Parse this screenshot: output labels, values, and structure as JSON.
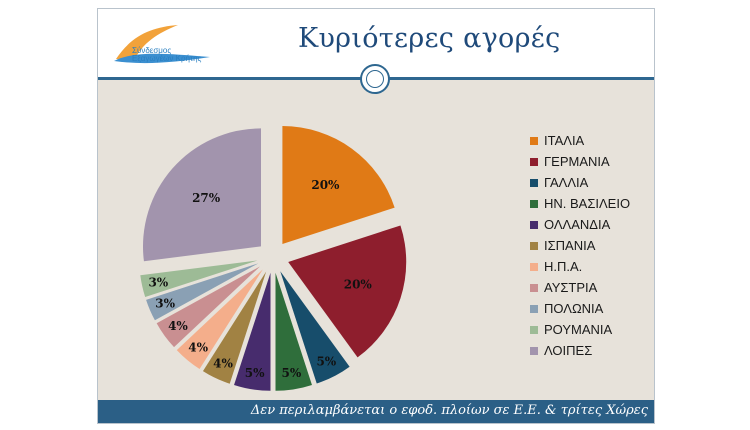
{
  "slide": {
    "title": "Κυριότερες αγορές",
    "logo_text": "Σύνδεσμος Εξαγωγέων Κρήτης",
    "footer": "Δεν περιλαμβάνεται ο εφοδ. πλοίων σε Ε.Ε. & τρίτες Χώρες"
  },
  "chart_data": {
    "type": "pie",
    "title": "",
    "slices": [
      {
        "name": "ΙΤΑΛΙΑ",
        "value": 20,
        "label": "20%",
        "color": "#e07a16"
      },
      {
        "name": "ΓΕΡΜΑΝΙΑ",
        "value": 20,
        "label": "20%",
        "color": "#8e1e2d"
      },
      {
        "name": "ΓΑΛΛΙΑ",
        "value": 5,
        "label": "5%",
        "color": "#174d6b"
      },
      {
        "name": "ΗΝ. ΒΑΣΙΛΕΙΟ",
        "value": 5,
        "label": "5%",
        "color": "#2f6e3b"
      },
      {
        "name": "ΟΛΛΑΝΔΙΑ",
        "value": 5,
        "label": "5%",
        "color": "#472c6d"
      },
      {
        "name": "ΙΣΠΑΝΙΑ",
        "value": 4,
        "label": "4%",
        "color": "#a18243"
      },
      {
        "name": "Η.Π.Α.",
        "value": 4,
        "label": "4%",
        "color": "#f4ae8b"
      },
      {
        "name": "ΑΥΣΤΡΙΑ",
        "value": 4,
        "label": "4%",
        "color": "#c98f91"
      },
      {
        "name": "ΠΟΛΩΝΙΑ",
        "value": 3,
        "label": "3%",
        "color": "#8aa0b4"
      },
      {
        "name": "ΡΟΥΜΑΝΙΑ",
        "value": 3,
        "label": "3%",
        "color": "#9dbb96"
      },
      {
        "name": "ΛΟΙΠΕΣ",
        "value": 27,
        "label": "27%",
        "color": "#a294ad"
      }
    ],
    "legend_position": "right"
  }
}
